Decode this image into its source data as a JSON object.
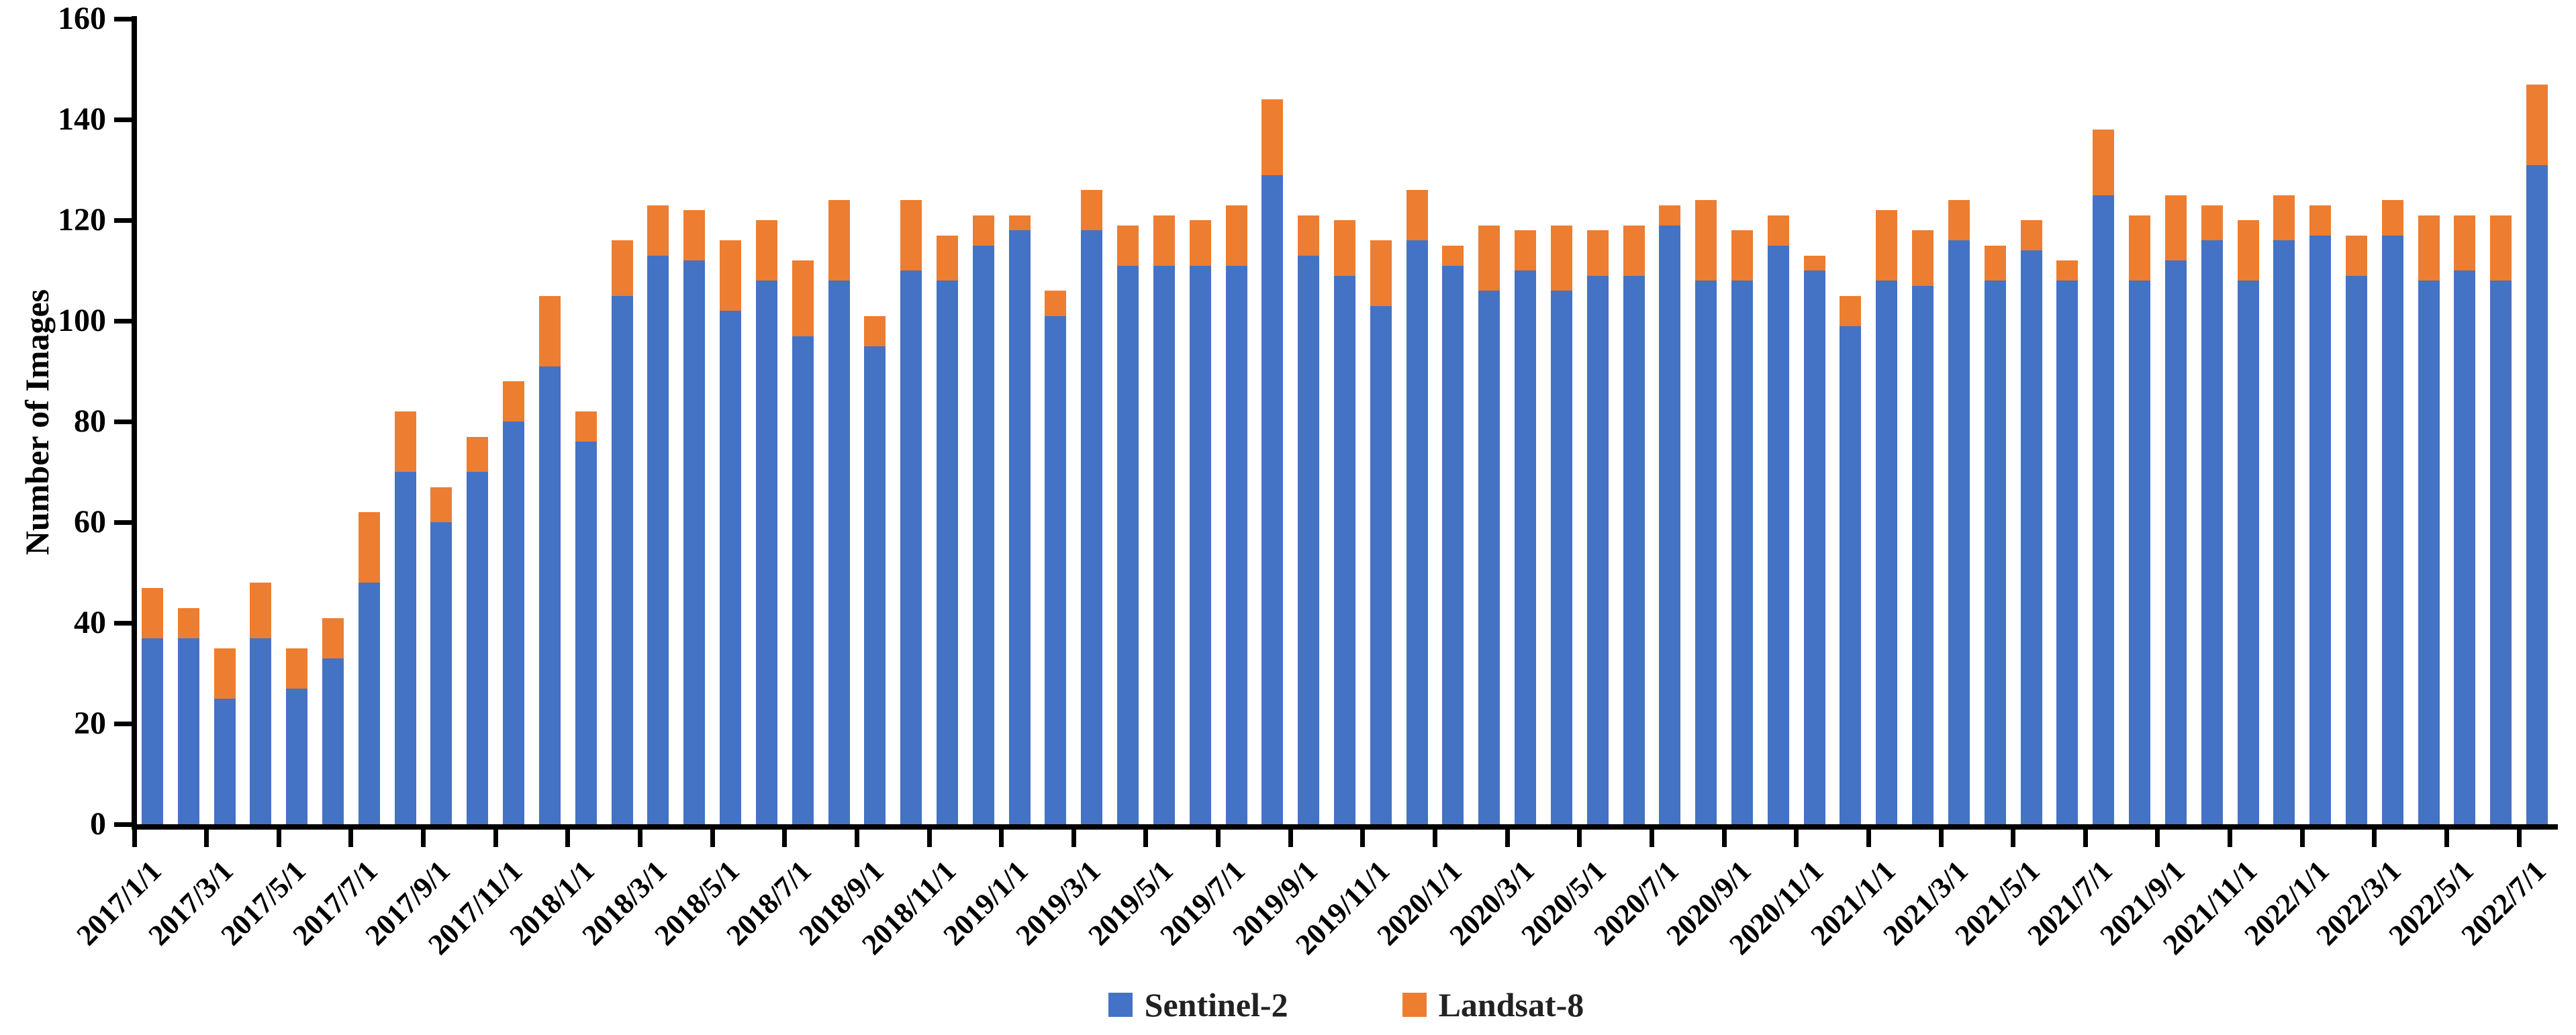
{
  "chart_data": {
    "type": "bar",
    "stacked": true,
    "title": "",
    "xlabel": "",
    "ylabel": "Number of Images",
    "ylim": [
      0,
      160
    ],
    "y_tick_step": 20,
    "grid": false,
    "legend_position": "bottom-center",
    "categories": [
      "2017/1",
      "2017/2",
      "2017/3",
      "2017/4",
      "2017/5",
      "2017/6",
      "2017/7",
      "2017/8",
      "2017/9",
      "2017/10",
      "2017/11",
      "2017/12",
      "2018/1",
      "2018/2",
      "2018/3",
      "2018/4",
      "2018/5",
      "2018/6",
      "2018/7",
      "2018/8",
      "2018/9",
      "2018/10",
      "2018/11",
      "2018/12",
      "2019/1",
      "2019/2",
      "2019/3",
      "2019/4",
      "2019/5",
      "2019/6",
      "2019/7",
      "2019/8",
      "2019/9",
      "2019/10",
      "2019/11",
      "2019/12",
      "2020/1",
      "2020/2",
      "2020/3",
      "2020/4",
      "2020/5",
      "2020/6",
      "2020/7",
      "2020/8",
      "2020/9",
      "2020/10",
      "2020/11",
      "2020/12",
      "2021/1",
      "2021/2",
      "2021/3",
      "2021/4",
      "2021/5",
      "2021/6",
      "2021/7",
      "2021/8",
      "2021/9",
      "2021/10",
      "2021/11",
      "2021/12",
      "2022/1",
      "2022/2",
      "2022/3",
      "2022/4",
      "2022/5",
      "2022/6",
      "2022/7"
    ],
    "series": [
      {
        "name": "Sentinel-2",
        "color": "#4472C4",
        "values": [
          37,
          37,
          25,
          37,
          27,
          33,
          48,
          70,
          60,
          70,
          80,
          91,
          76,
          105,
          113,
          112,
          102,
          108,
          97,
          108,
          95,
          110,
          108,
          115,
          118,
          101,
          118,
          111,
          111,
          111,
          111,
          129,
          113,
          109,
          103,
          116,
          111,
          106,
          110,
          106,
          109,
          109,
          119,
          108,
          108,
          115,
          110,
          99,
          108,
          107,
          116,
          108,
          114,
          108,
          125,
          108,
          112,
          116,
          108,
          116,
          117,
          109,
          117,
          108,
          110,
          108,
          131
        ]
      },
      {
        "name": "Landsat-8",
        "color": "#ED7D31",
        "values": [
          10,
          6,
          10,
          11,
          8,
          8,
          14,
          12,
          7,
          7,
          8,
          14,
          6,
          11,
          10,
          10,
          14,
          12,
          15,
          16,
          6,
          14,
          9,
          6,
          3,
          5,
          8,
          8,
          10,
          9,
          12,
          15,
          8,
          11,
          13,
          10,
          4,
          13,
          8,
          13,
          9,
          10,
          4,
          16,
          10,
          6,
          3,
          6,
          14,
          11,
          8,
          7,
          6,
          4,
          13,
          13,
          13,
          7,
          12,
          9,
          6,
          8,
          7,
          13,
          11,
          13,
          16
        ]
      }
    ],
    "x_tick_labels": [
      "2017/1/1",
      "2017/3/1",
      "2017/5/1",
      "2017/7/1",
      "2017/9/1",
      "2017/11/1",
      "2018/1/1",
      "2018/3/1",
      "2018/5/1",
      "2018/7/1",
      "2018/9/1",
      "2018/11/1",
      "2019/1/1",
      "2019/3/1",
      "2019/5/1",
      "2019/7/1",
      "2019/9/1",
      "2019/11/1",
      "2020/1/1",
      "2020/3/1",
      "2020/5/1",
      "2020/7/1",
      "2020/9/1",
      "2020/11/1",
      "2021/1/1",
      "2021/3/1",
      "2021/5/1",
      "2021/7/1",
      "2021/9/1",
      "2021/11/1",
      "2022/1/1",
      "2022/3/1",
      "2022/5/1",
      "2022/7/1"
    ],
    "y_tick_labels": [
      "0",
      "20",
      "40",
      "60",
      "80",
      "100",
      "120",
      "140",
      "160"
    ]
  },
  "legend": {
    "items": [
      {
        "label": "Sentinel-2",
        "color": "#4472C4"
      },
      {
        "label": "Landsat-8",
        "color": "#ED7D31"
      }
    ]
  },
  "colors": {
    "axis": "#000000",
    "background": "#FFFFFF",
    "text": "#000000"
  }
}
